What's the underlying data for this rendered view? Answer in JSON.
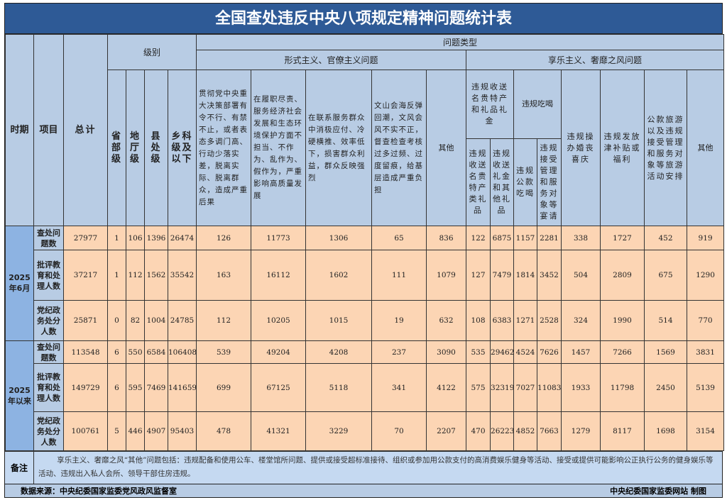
{
  "title": "全国查处违反中央八项规定精神问题统计表",
  "headers": {
    "period": "时期",
    "item": "项目",
    "total": "总计",
    "level": "级别",
    "problem_type": "问题类型",
    "levels": [
      "省部级",
      "地厅级",
      "县处级",
      "乡科级及以下"
    ],
    "formalism": "形式主义、官僚主义问题",
    "hedonism": "享乐主义、奢靡之风问题",
    "formalism_cols": [
      "贯彻党中央重大决策部署有令不行、有禁不止，或者表态多调门高、行动少落实差，脱离实际、脱离群众，造成严重后果",
      "在履职尽责、服务经济社会发展和生态环境保护方面不担当、不作为、乱作为、假作为，严重影响高质量发展",
      "在联系服务群众中消极应付、冷硬横推、效率低下，损害群众利益，群众反映强烈",
      "文山会海反弹回潮，文风会风不实不正，督查检查考核过多过频、过度留痕，给基层造成严重负担",
      "其他"
    ],
    "gifts": "违规收送名贵特产和礼品礼金",
    "gifts_sub": [
      "违规收送名贵特产类礼品",
      "违规收送礼金和其他礼品"
    ],
    "dining": "违规吃喝",
    "dining_sub": [
      "违规公款吃喝",
      "违规接受管理和服务对象等宴请"
    ],
    "hedonism_cols": [
      "违规操办婚丧喜庆",
      "违规发放津补贴或福利",
      "公款旅游以及违规接受管理和服务对象等旅游活动安排",
      "其他"
    ]
  },
  "groups": [
    {
      "period": "2025年6月",
      "rows": [
        {
          "item": "查处问题数",
          "values": [
            "27977",
            "1",
            "106",
            "1396",
            "26474",
            "126",
            "11773",
            "1306",
            "65",
            "836",
            "122",
            "6875",
            "1157",
            "2281",
            "338",
            "1727",
            "452",
            "919"
          ]
        },
        {
          "item": "批评教育和处理人数",
          "values": [
            "37217",
            "1",
            "112",
            "1562",
            "35542",
            "163",
            "16112",
            "1602",
            "111",
            "1079",
            "127",
            "7479",
            "1814",
            "3452",
            "504",
            "2809",
            "675",
            "1290"
          ]
        },
        {
          "item": "党纪政务处分人数",
          "values": [
            "25871",
            "0",
            "82",
            "1004",
            "24785",
            "112",
            "10205",
            "1015",
            "19",
            "632",
            "108",
            "6383",
            "1271",
            "2528",
            "324",
            "1990",
            "514",
            "770"
          ]
        }
      ]
    },
    {
      "period": "2025年以来",
      "rows": [
        {
          "item": "查处问题数",
          "values": [
            "113548",
            "6",
            "550",
            "6584",
            "106408",
            "539",
            "49204",
            "4208",
            "237",
            "3090",
            "535",
            "29462",
            "4524",
            "7626",
            "1457",
            "7266",
            "1569",
            "3831"
          ]
        },
        {
          "item": "批评教育和处理人数",
          "values": [
            "149729",
            "6",
            "595",
            "7469",
            "141659",
            "699",
            "67125",
            "5118",
            "341",
            "4122",
            "575",
            "32319",
            "7027",
            "11083",
            "1933",
            "11798",
            "2450",
            "5139"
          ]
        },
        {
          "item": "党纪政务处分人数",
          "values": [
            "100761",
            "5",
            "446",
            "4907",
            "95403",
            "478",
            "41321",
            "3229",
            "70",
            "2207",
            "470",
            "26223",
            "4852",
            "7663",
            "1279",
            "8117",
            "1698",
            "3154"
          ]
        }
      ]
    }
  ],
  "note": {
    "label": "备注",
    "text": "享乐主义、奢靡之风“其他”问题包括：违规配备和使用公车、楼堂馆所问题、提供或接受超标准接待、组织或参加用公款支付的高消费娱乐健身等活动、接受或提供可能影响公正执行公务的健身娱乐等活动、违规出入私人会所、领导干部住房违规。"
  },
  "footer": {
    "source": "数据来源：中央纪委国家监委党风政风监督室",
    "credit": "中央纪委国家监委网站 制图"
  }
}
